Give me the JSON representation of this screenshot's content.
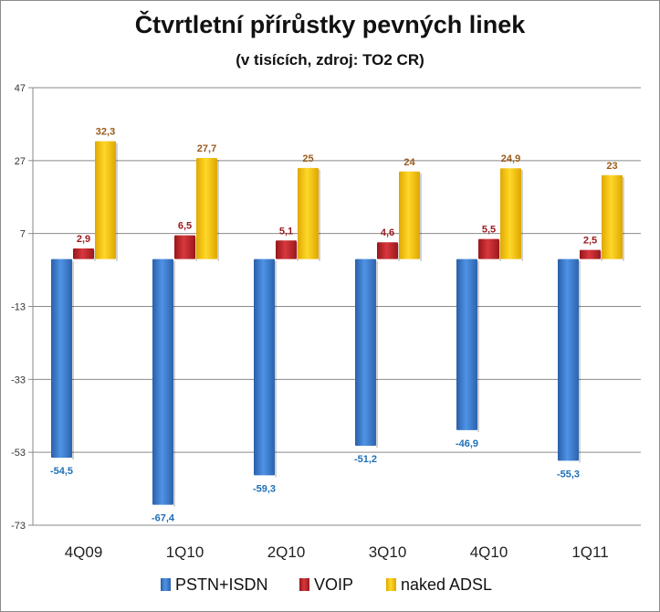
{
  "title": "Čtvrtletní přírůstky pevných linek",
  "subtitle": "(v tisících, zdroj: TO2 CR)",
  "chart_data": {
    "type": "bar",
    "categories": [
      "4Q09",
      "1Q10",
      "2Q10",
      "3Q10",
      "4Q10",
      "1Q11"
    ],
    "series": [
      {
        "name": "PSTN+ISDN",
        "values": [
          -54.5,
          -67.4,
          -59.3,
          -51.2,
          -46.9,
          -55.3
        ],
        "labels": [
          "-54,5",
          "-67,4",
          "-59,3",
          "-51,2",
          "-46,9",
          "-55,3"
        ],
        "color": "#3f7fd0",
        "label_color": "#1f6fb5"
      },
      {
        "name": "VOIP",
        "values": [
          2.9,
          6.5,
          5.1,
          4.6,
          5.5,
          2.5
        ],
        "labels": [
          "2,9",
          "6,5",
          "5,1",
          "4,6",
          "5,5",
          "2,5"
        ],
        "color": "#c0282d",
        "label_color": "#9b1c20"
      },
      {
        "name": "naked ADSL",
        "values": [
          32.3,
          27.7,
          25,
          24,
          24.9,
          23
        ],
        "labels": [
          "32,3",
          "27,7",
          "25",
          "24",
          "24,9",
          "23"
        ],
        "color": "#f5c400",
        "label_color": "#9a5a1a"
      }
    ],
    "yticks": [
      47,
      27,
      7,
      -13,
      -33,
      -53,
      -73
    ],
    "ylim": [
      -73,
      47
    ],
    "grid": true,
    "legend": "bottom"
  }
}
